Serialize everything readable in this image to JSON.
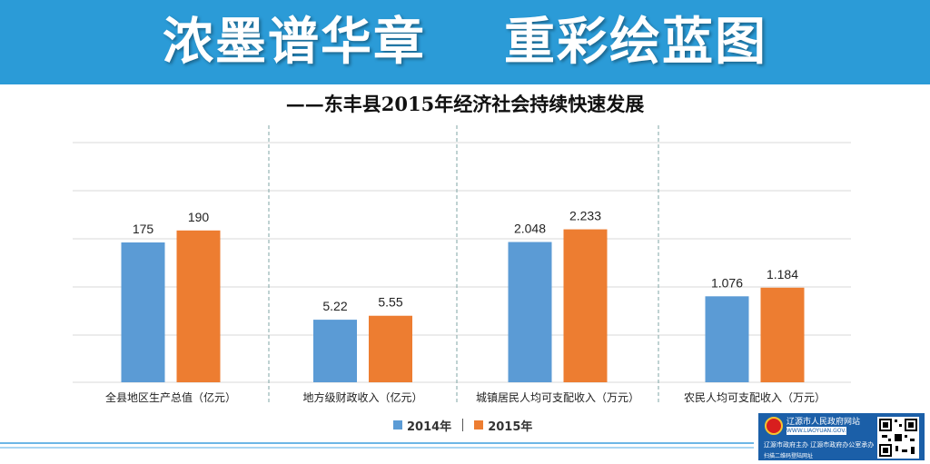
{
  "banner": {
    "title": "浓墨谱华章    重彩绘蓝图"
  },
  "subtitle": "——东丰县2015年经济社会持续快速发展",
  "colors": {
    "banner": "#2b9bd7",
    "series2014": "#5b9bd5",
    "series2015": "#ed7d31"
  },
  "chart_data": {
    "type": "bar",
    "categories": [
      "全县地区生产总值（亿元）",
      "地方级财政收入（亿元）",
      "城镇居民人均可支配收入（万元）",
      "农民人均可支配收入（万元）"
    ],
    "series": [
      {
        "name": "2014年",
        "values": [
          175,
          5.22,
          2.048,
          1.076
        ],
        "labels": [
          "175",
          "5.22",
          "2.048",
          "1.076"
        ]
      },
      {
        "name": "2015年",
        "values": [
          190,
          5.55,
          2.233,
          1.184
        ],
        "labels": [
          "190",
          "5.55",
          "2.233",
          "1.184"
        ]
      }
    ],
    "panel_ylims": [
      [
        0,
        300
      ],
      [
        0,
        20
      ],
      [
        0,
        3.5
      ],
      [
        0,
        3
      ]
    ],
    "grid": true,
    "legend_position": "bottom"
  },
  "legend": {
    "item1": "2014年",
    "item2": "2015年"
  },
  "footer": {
    "site_name": "辽源市人民政府网站",
    "url": "WWW.LIAOYUAN.GOV.CN",
    "host": "辽源市政府主办 辽源市政府办公室承办",
    "scan": "扫描二维码登陆网址"
  }
}
